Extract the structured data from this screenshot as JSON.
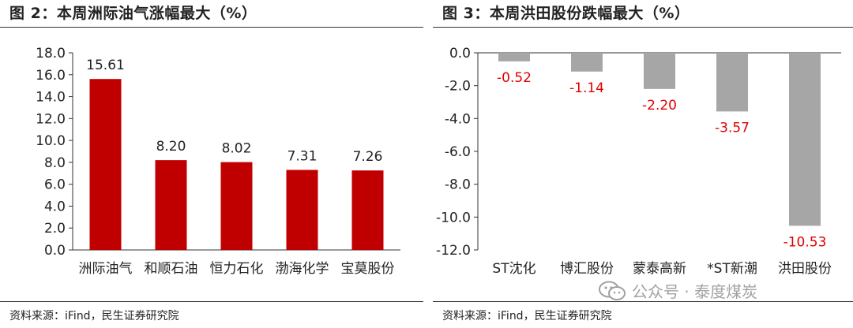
{
  "figures": [
    {
      "title": "图 2：本周洲际油气涨幅最大（%）",
      "source": "资料来源：iFind，民生证券研究院"
    },
    {
      "title": "图 3：本周洪田股份跌幅最大（%）",
      "source": "资料来源：iFind，民生证券研究院"
    }
  ],
  "watermark": {
    "text": "公众号 · 泰度煤炭",
    "icon": "wechat-icon"
  },
  "chart_data": [
    {
      "type": "bar",
      "title": "图 2：本周洲际油气涨幅最大（%）",
      "categories": [
        "洲际油气",
        "和顺石油",
        "恒力石化",
        "渤海化学",
        "宝莫股份"
      ],
      "values": [
        15.61,
        8.2,
        8.02,
        7.31,
        7.26
      ],
      "value_labels": [
        "15.61",
        "8.20",
        "8.02",
        "7.31",
        "7.26"
      ],
      "yticks": [
        "0.0",
        "2.0",
        "4.0",
        "6.0",
        "8.0",
        "10.0",
        "12.0",
        "14.0",
        "16.0",
        "18.0"
      ],
      "ylim": [
        0,
        18
      ],
      "bar_color": "#c00000",
      "label_color": "#222222",
      "grid": false,
      "xlabel": "",
      "ylabel": ""
    },
    {
      "type": "bar",
      "title": "图 3：本周洪田股份跌幅最大（%）",
      "categories": [
        "ST沈化",
        "博汇股份",
        "蒙泰高新",
        "*ST新潮",
        "洪田股份"
      ],
      "values": [
        -0.52,
        -1.14,
        -2.2,
        -3.57,
        -10.53
      ],
      "value_labels": [
        "-0.52",
        "-1.14",
        "-2.20",
        "-3.57",
        "-10.53"
      ],
      "yticks": [
        "0.0",
        "-2.0",
        "-4.0",
        "-6.0",
        "-8.0",
        "-10.0",
        "-12.0"
      ],
      "ylim": [
        -12,
        0
      ],
      "bar_color": "#a6a6a6",
      "label_color": "#e00000",
      "grid": false,
      "xlabel": "",
      "ylabel": ""
    }
  ]
}
